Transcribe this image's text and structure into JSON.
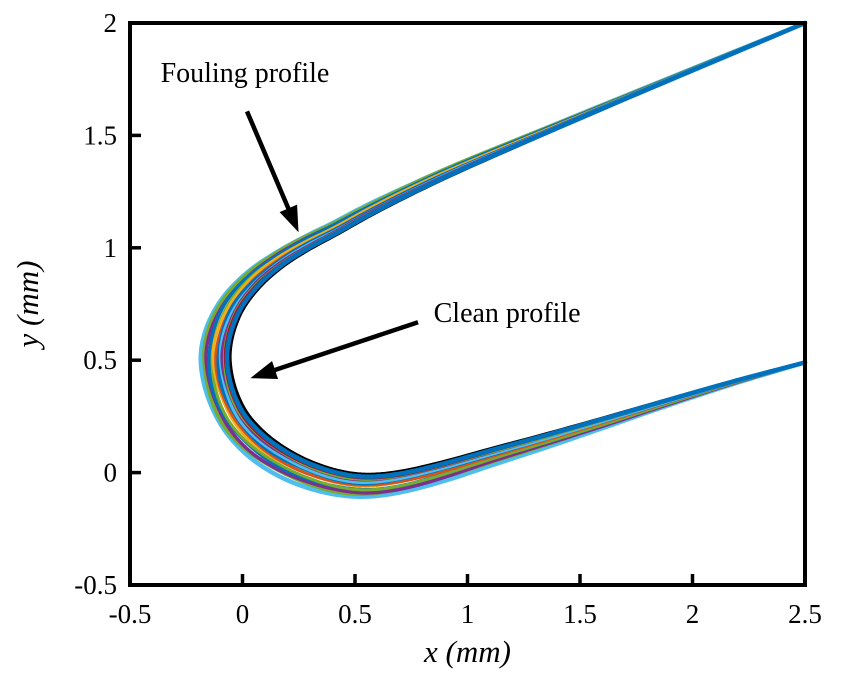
{
  "figure_title": "",
  "chart_data": {
    "type": "line",
    "title": "",
    "xlabel": "x (mm)",
    "ylabel": "y (mm)",
    "xlim": [
      -0.5,
      2.5
    ],
    "ylim": [
      -0.5,
      2
    ],
    "grid": false,
    "legend": "none",
    "axes_color": "#000000",
    "background_color": "#ffffff",
    "xticks": {
      "values": [
        -0.5,
        0,
        0.5,
        1,
        1.5,
        2,
        2.5
      ],
      "labels": [
        "-0.5",
        "0",
        "0.5",
        "1",
        "1.5",
        "2",
        "2.5"
      ]
    },
    "yticks": {
      "values": [
        -0.5,
        0,
        0.5,
        1,
        1.5,
        2
      ],
      "labels": [
        "-0.5",
        "0",
        "0.5",
        "1",
        "1.5",
        "2"
      ]
    },
    "clean_profile": {
      "name": "Clean profile",
      "color": "#000000",
      "line_width": 3.4,
      "x": [
        2.5,
        2.1,
        1.7,
        1.3,
        1.0,
        0.78,
        0.58,
        0.42,
        0.3,
        0.19,
        0.09,
        0.01,
        -0.035,
        -0.055,
        -0.05,
        -0.025,
        0.02,
        0.09,
        0.18,
        0.29,
        0.42,
        0.55,
        0.7,
        0.88,
        1.1,
        1.35,
        1.6,
        1.9,
        2.2,
        2.5
      ],
      "y": [
        2.0,
        1.83,
        1.66,
        1.487,
        1.355,
        1.252,
        1.15,
        1.06,
        0.995,
        0.925,
        0.84,
        0.74,
        0.64,
        0.54,
        0.45,
        0.355,
        0.265,
        0.185,
        0.115,
        0.055,
        0.01,
        -0.008,
        0.005,
        0.045,
        0.105,
        0.172,
        0.242,
        0.328,
        0.412,
        0.49
      ]
    },
    "fouling_profiles": {
      "name": "Fouling profile",
      "description": "Family of fouled-blade profiles plotted outside the clean profile; deposit thickness is max at the leading-edge nose and vanishes at x = 2.5 mm",
      "spread_weights": [
        0.0,
        0.06,
        0.12,
        0.2,
        0.28,
        0.33,
        0.38,
        0.42,
        0.47,
        0.55,
        0.68,
        0.8,
        0.9,
        0.97,
        1.0,
        1.0,
        0.98,
        0.95,
        0.9,
        0.85,
        0.8,
        0.75,
        0.68,
        0.6,
        0.5,
        0.4,
        0.3,
        0.18,
        0.08,
        0.0
      ],
      "max_thickness_mm": 0.13,
      "layers": [
        {
          "color": "#4DBEEE",
          "offset_mm": 0.13,
          "width": 4.5,
          "bias": 0.1,
          "jitter_amp": 0.004,
          "jitter_freq": 5,
          "jitter_phase": 0.5
        },
        {
          "color": "#77AC30",
          "offset_mm": 0.118,
          "width": 3.5,
          "bias": -0.05,
          "jitter_amp": 0.003,
          "jitter_freq": 7,
          "jitter_phase": 2.1
        },
        {
          "color": "#7E2F8E",
          "offset_mm": 0.106,
          "width": 3.5,
          "bias": 0.08,
          "jitter_amp": 0.004,
          "jitter_freq": 6,
          "jitter_phase": 4.0
        },
        {
          "color": "#0072BD",
          "offset_mm": 0.095,
          "width": 3.5,
          "bias": -0.1,
          "jitter_amp": 0.003,
          "jitter_freq": 8,
          "jitter_phase": 1.2
        },
        {
          "color": "#77AC30",
          "offset_mm": 0.084,
          "width": 3.0,
          "bias": 0.15,
          "jitter_amp": 0.003,
          "jitter_freq": 5,
          "jitter_phase": 3.3
        },
        {
          "color": "#EDB120",
          "offset_mm": 0.073,
          "width": 3.0,
          "bias": -0.2,
          "jitter_amp": 0.003,
          "jitter_freq": 7,
          "jitter_phase": 0.8
        },
        {
          "color": "#D95319",
          "offset_mm": 0.063,
          "width": 3.0,
          "bias": 0.1,
          "jitter_amp": 0.002,
          "jitter_freq": 6,
          "jitter_phase": 2.6
        },
        {
          "color": "#0072BD",
          "offset_mm": 0.053,
          "width": 3.5,
          "bias": -0.08,
          "jitter_amp": 0.003,
          "jitter_freq": 9,
          "jitter_phase": 5.1
        },
        {
          "color": "#4DBEEE",
          "offset_mm": 0.043,
          "width": 3.5,
          "bias": 0.12,
          "jitter_amp": 0.002,
          "jitter_freq": 7,
          "jitter_phase": 1.9
        },
        {
          "color": "#7E2F8E",
          "offset_mm": 0.034,
          "width": 3.0,
          "bias": -0.12,
          "jitter_amp": 0.002,
          "jitter_freq": 8,
          "jitter_phase": 3.7
        },
        {
          "color": "#77AC30",
          "offset_mm": 0.027,
          "width": 3.0,
          "bias": 0.1,
          "jitter_amp": 0.002,
          "jitter_freq": 6,
          "jitter_phase": 0.3
        },
        {
          "color": "#A2142F",
          "offset_mm": 0.022,
          "width": 3.0,
          "bias": 0.0,
          "jitter_amp": 0.0015,
          "jitter_freq": 5,
          "jitter_phase": 2.2
        },
        {
          "color": "#0072BD",
          "offset_mm": 0.013,
          "width": 4.5,
          "bias": 0.0,
          "jitter_amp": 0.001,
          "jitter_freq": 4,
          "jitter_phase": 1.0
        }
      ]
    },
    "annotations": [
      {
        "text": "Fouling profile",
        "text_x": 0.011,
        "text_y": 1.782,
        "arrow_from": [
          0.02,
          1.607
        ],
        "arrow_to": [
          0.249,
          1.069
        ],
        "color": "#000000"
      },
      {
        "text": "Clean profile",
        "text_x": 1.176,
        "text_y": 0.714,
        "arrow_from": [
          0.78,
          0.669
        ],
        "arrow_to": [
          0.035,
          0.42
        ],
        "color": "#000000"
      }
    ]
  }
}
